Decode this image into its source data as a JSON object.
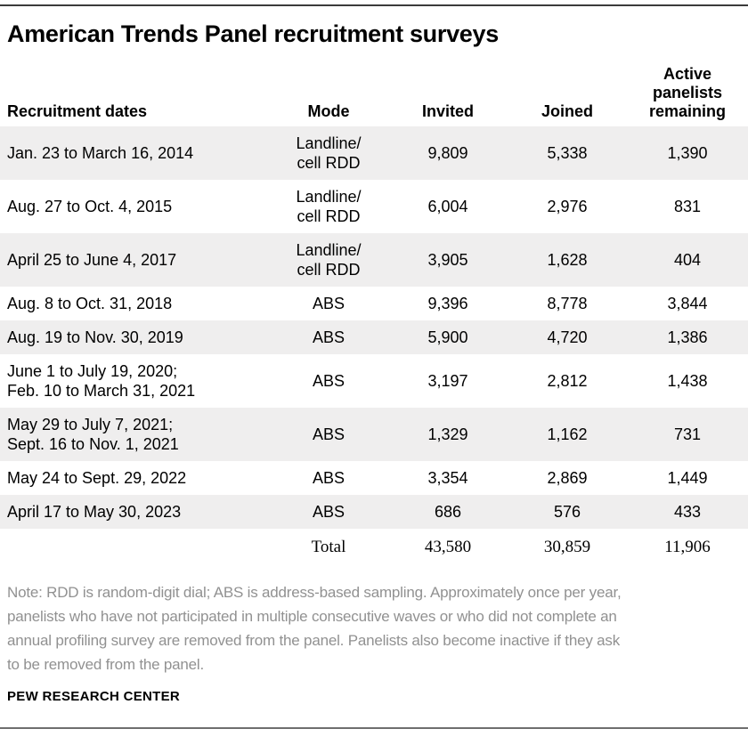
{
  "title": "American Trends Panel recruitment surveys",
  "source": "PEW RESEARCH CENTER",
  "note": "Note: RDD is random-digit dial; ABS is address-based sampling. Approximately once per year, panelists who have not participated in multiple consecutive waves or who did not complete an annual profiling survey are removed from the panel. Panelists also become inactive if they ask to be removed from the panel.",
  "colors": {
    "row_stripe": "#efeeee",
    "note_text": "#919191",
    "top_rule": "#3a3a3a",
    "bottom_rule": "#6e6e6e",
    "text": "#000000"
  },
  "chart_data": {
    "type": "table",
    "title": "American Trends Panel recruitment surveys",
    "columns": [
      "Recruitment dates",
      "Mode",
      "Invited",
      "Joined",
      "Active panelists remaining"
    ],
    "rows": [
      {
        "dates": "Jan. 23 to March 16, 2014",
        "mode": "Landline/\ncell RDD",
        "invited": "9,809",
        "joined": "5,338",
        "remaining": "1,390"
      },
      {
        "dates": "Aug. 27 to Oct. 4, 2015",
        "mode": "Landline/\ncell RDD",
        "invited": "6,004",
        "joined": "2,976",
        "remaining": "831"
      },
      {
        "dates": "April 25 to June 4, 2017",
        "mode": "Landline/\ncell RDD",
        "invited": "3,905",
        "joined": "1,628",
        "remaining": "404"
      },
      {
        "dates": "Aug. 8 to Oct. 31, 2018",
        "mode": "ABS",
        "invited": "9,396",
        "joined": "8,778",
        "remaining": "3,844"
      },
      {
        "dates": "Aug. 19 to Nov. 30, 2019",
        "mode": "ABS",
        "invited": "5,900",
        "joined": "4,720",
        "remaining": "1,386"
      },
      {
        "dates": "June 1 to July 19, 2020;\nFeb. 10 to March 31, 2021",
        "mode": "ABS",
        "invited": "3,197",
        "joined": "2,812",
        "remaining": "1,438"
      },
      {
        "dates": "May 29 to July 7, 2021;\nSept. 16 to Nov. 1, 2021",
        "mode": "ABS",
        "invited": "1,329",
        "joined": "1,162",
        "remaining": "731"
      },
      {
        "dates": "May 24 to Sept. 29, 2022",
        "mode": "ABS",
        "invited": "3,354",
        "joined": "2,869",
        "remaining": "1,449"
      },
      {
        "dates": "April 17 to May 30, 2023",
        "mode": "ABS",
        "invited": "686",
        "joined": "576",
        "remaining": "433"
      }
    ],
    "total_row": {
      "label": "Total",
      "invited": "43,580",
      "joined": "30,859",
      "remaining": "11,906"
    }
  }
}
